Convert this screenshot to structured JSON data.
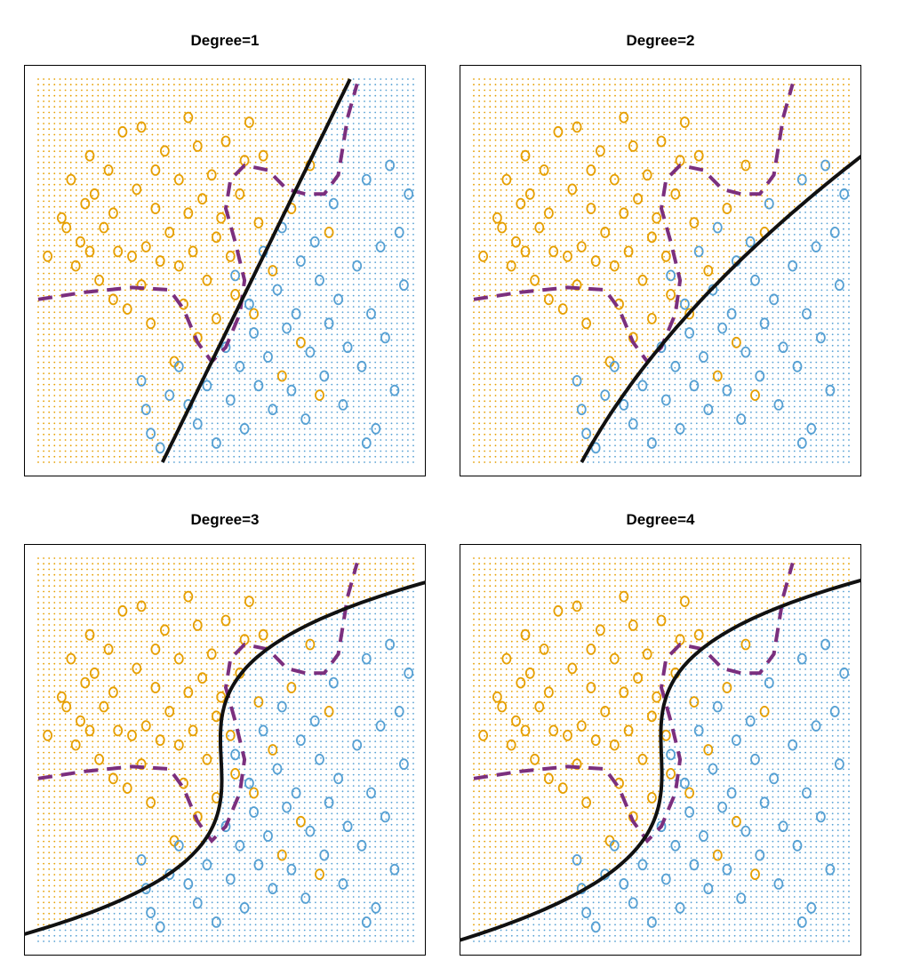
{
  "figure": {
    "colors": {
      "orange": "#E69F00",
      "blue": "#56A0D3",
      "boundary": "#111111",
      "bayes": "#7B2F7E"
    }
  },
  "chart_data": [
    {
      "type": "scatter",
      "title": "Degree=1",
      "xlim": [
        -4,
        4
      ],
      "ylim": [
        -4,
        4
      ],
      "grid": "background class grid",
      "fit": {
        "style": "solid black",
        "kind": "linear"
      },
      "bayes": {
        "style": "dashed purple"
      }
    },
    {
      "type": "scatter",
      "title": "Degree=2",
      "xlim": [
        -4,
        4
      ],
      "ylim": [
        -4,
        4
      ],
      "grid": "background class grid",
      "fit": {
        "style": "solid black",
        "kind": "quadratic"
      },
      "bayes": {
        "style": "dashed purple"
      }
    },
    {
      "type": "scatter",
      "title": "Degree=3",
      "xlim": [
        -4,
        4
      ],
      "ylim": [
        -4,
        4
      ],
      "grid": "background class grid",
      "fit": {
        "style": "solid black",
        "kind": "cubic"
      },
      "bayes": {
        "style": "dashed purple"
      }
    },
    {
      "type": "scatter",
      "title": "Degree=4",
      "xlim": [
        -4,
        4
      ],
      "ylim": [
        -4,
        4
      ],
      "grid": "background class grid",
      "fit": {
        "style": "solid black",
        "kind": "quartic"
      },
      "bayes": {
        "style": "dashed purple"
      }
    }
  ],
  "points": {
    "orange": [
      [
        -3.8,
        0.3
      ],
      [
        -3.5,
        1.1
      ],
      [
        -3.4,
        0.9
      ],
      [
        -3.3,
        1.9
      ],
      [
        -3.2,
        0.1
      ],
      [
        -3.1,
        0.6
      ],
      [
        -3.0,
        1.4
      ],
      [
        -2.9,
        2.4
      ],
      [
        -2.9,
        0.4
      ],
      [
        -2.8,
        1.6
      ],
      [
        -2.7,
        -0.2
      ],
      [
        -2.6,
        0.9
      ],
      [
        -2.5,
        2.1
      ],
      [
        -2.4,
        1.2
      ],
      [
        -2.4,
        -0.6
      ],
      [
        -2.3,
        0.4
      ],
      [
        -2.2,
        2.9
      ],
      [
        -2.1,
        -0.8
      ],
      [
        -2.0,
        0.3
      ],
      [
        -1.9,
        1.7
      ],
      [
        -1.8,
        -0.3
      ],
      [
        -1.8,
        3.0
      ],
      [
        -1.7,
        0.5
      ],
      [
        -1.6,
        -1.1
      ],
      [
        -1.5,
        1.3
      ],
      [
        -1.5,
        2.1
      ],
      [
        -1.4,
        0.2
      ],
      [
        -1.3,
        2.5
      ],
      [
        -1.2,
        0.8
      ],
      [
        -1.1,
        -1.9
      ],
      [
        -1.0,
        1.9
      ],
      [
        -1.0,
        0.1
      ],
      [
        -0.9,
        -0.7
      ],
      [
        -0.8,
        1.2
      ],
      [
        -0.8,
        3.2
      ],
      [
        -0.7,
        0.4
      ],
      [
        -0.6,
        -1.4
      ],
      [
        -0.6,
        2.6
      ],
      [
        -0.5,
        1.5
      ],
      [
        -0.4,
        -0.2
      ],
      [
        -0.3,
        2.0
      ],
      [
        -0.2,
        0.7
      ],
      [
        -0.2,
        -1.0
      ],
      [
        -0.1,
        1.1
      ],
      [
        0.0,
        2.7
      ],
      [
        0.1,
        0.3
      ],
      [
        0.2,
        -0.5
      ],
      [
        0.3,
        1.6
      ],
      [
        0.4,
        2.3
      ],
      [
        0.5,
        3.1
      ],
      [
        0.6,
        -0.9
      ],
      [
        0.7,
        1.0
      ],
      [
        0.8,
        2.4
      ],
      [
        1.0,
        0.0
      ],
      [
        1.2,
        -2.2
      ],
      [
        1.4,
        1.3
      ],
      [
        1.6,
        -1.5
      ],
      [
        1.8,
        2.2
      ],
      [
        2.0,
        -2.6
      ],
      [
        2.2,
        0.8
      ]
    ],
    "blue": [
      [
        -1.8,
        -2.3
      ],
      [
        -1.7,
        -2.9
      ],
      [
        -1.6,
        -3.4
      ],
      [
        -1.4,
        -3.7
      ],
      [
        -1.2,
        -2.6
      ],
      [
        -1.0,
        -2.0
      ],
      [
        -0.8,
        -2.8
      ],
      [
        -0.6,
        -3.2
      ],
      [
        -0.4,
        -2.4
      ],
      [
        -0.2,
        -3.6
      ],
      [
        0.0,
        -1.6
      ],
      [
        0.1,
        -2.7
      ],
      [
        0.2,
        -0.1
      ],
      [
        0.3,
        -2.0
      ],
      [
        0.4,
        -3.3
      ],
      [
        0.5,
        -0.7
      ],
      [
        0.6,
        -1.3
      ],
      [
        0.7,
        -2.4
      ],
      [
        0.8,
        0.4
      ],
      [
        0.9,
        -1.8
      ],
      [
        1.0,
        -2.9
      ],
      [
        1.1,
        -0.4
      ],
      [
        1.2,
        0.9
      ],
      [
        1.3,
        -1.2
      ],
      [
        1.4,
        -2.5
      ],
      [
        1.5,
        -0.9
      ],
      [
        1.6,
        0.2
      ],
      [
        1.7,
        -3.1
      ],
      [
        1.8,
        -1.7
      ],
      [
        1.9,
        0.6
      ],
      [
        2.0,
        -0.2
      ],
      [
        2.1,
        -2.2
      ],
      [
        2.2,
        -1.1
      ],
      [
        2.3,
        1.4
      ],
      [
        2.4,
        -0.6
      ],
      [
        2.5,
        -2.8
      ],
      [
        2.6,
        -1.6
      ],
      [
        2.8,
        0.1
      ],
      [
        2.9,
        -2.0
      ],
      [
        3.0,
        1.9
      ],
      [
        3.1,
        -0.9
      ],
      [
        3.2,
        -3.3
      ],
      [
        3.3,
        0.5
      ],
      [
        3.4,
        -1.4
      ],
      [
        3.5,
        2.2
      ],
      [
        3.6,
        -2.5
      ],
      [
        3.7,
        0.8
      ],
      [
        3.8,
        -0.3
      ],
      [
        3.9,
        1.6
      ],
      [
        3.0,
        -3.6
      ]
    ]
  }
}
